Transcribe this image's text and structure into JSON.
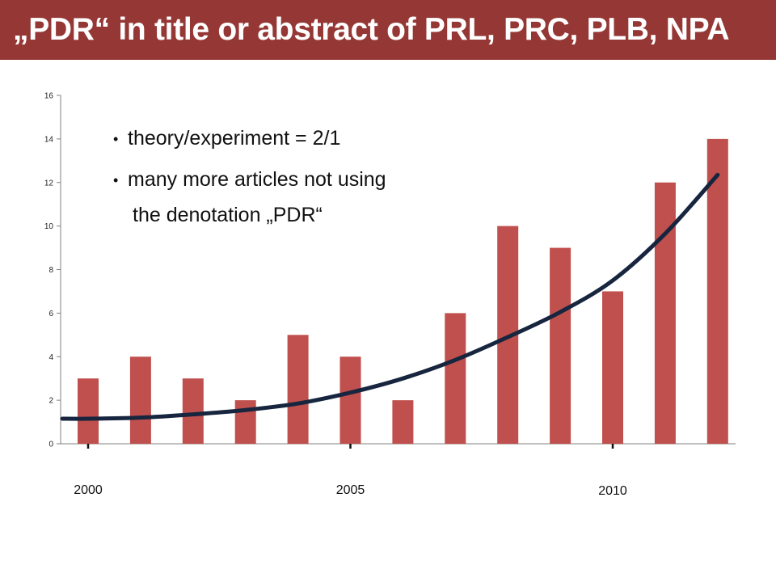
{
  "title": "„PDR“ in title or abstract of PRL, PRC, PLB, NPA",
  "notes": {
    "bullet1": "theory/experiment = 2/1",
    "bullet2_line1": "many more articles not using",
    "bullet2_line2": "the denotation „PDR“"
  },
  "chart_data": {
    "type": "bar",
    "categories": [
      "2000",
      "2001",
      "2002",
      "2003",
      "2004",
      "2005",
      "2006",
      "2007",
      "2008",
      "2009",
      "2010",
      "2011",
      "2012"
    ],
    "values": [
      3,
      4,
      3,
      2,
      5,
      4,
      2,
      6,
      10,
      9,
      7,
      12,
      14
    ],
    "x_tick_labels": [
      "2000",
      "2005",
      "2010"
    ],
    "y_ticks": [
      0,
      2,
      4,
      6,
      8,
      10,
      12,
      14,
      16
    ],
    "ylim": [
      0,
      16
    ],
    "bar_color": "#C0504D",
    "trend": {
      "type": "exponential fit",
      "color": "#17253F",
      "x": [
        "2000",
        "2001",
        "2002",
        "2003",
        "2004",
        "2005",
        "2006",
        "2007",
        "2008",
        "2009",
        "2010",
        "2011",
        "2012"
      ],
      "values": [
        1.15,
        1.2,
        1.35,
        1.55,
        1.85,
        2.35,
        3.0,
        3.85,
        4.9,
        6.05,
        7.5,
        9.65,
        12.35
      ]
    }
  }
}
